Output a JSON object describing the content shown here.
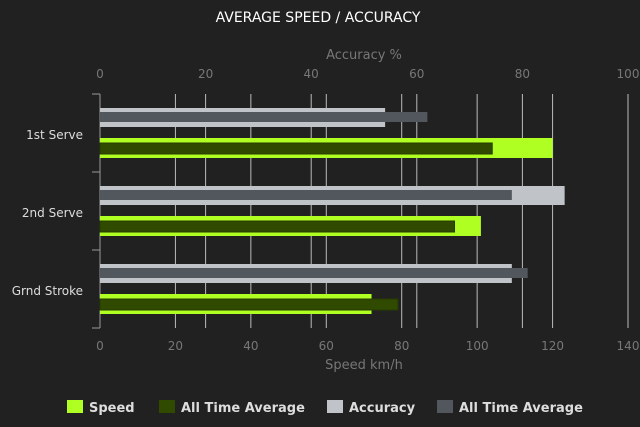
{
  "chart_data": {
    "type": "bar",
    "orientation": "horizontal",
    "title": "AVERAGE SPEED / ACCURACY",
    "categories": [
      "1st Serve",
      "2nd Serve",
      "Grnd Stroke"
    ],
    "x_bottom": {
      "label": "Speed km/h",
      "range": [
        0,
        140
      ],
      "ticks": [
        0,
        20,
        40,
        60,
        80,
        100,
        120,
        140
      ]
    },
    "x_top": {
      "label": "Accuracy %",
      "range": [
        0,
        100
      ],
      "ticks": [
        0,
        20,
        40,
        60,
        80,
        100
      ]
    },
    "grid": true,
    "legend_position": "bottom",
    "series": [
      {
        "name": "Speed",
        "axis": "bottom",
        "color": "#b0ff22",
        "values": [
          120,
          101,
          72
        ]
      },
      {
        "name": "All Time Average",
        "axis": "bottom",
        "color": "#304a00",
        "values": [
          104,
          94,
          79
        ]
      },
      {
        "name": "Accuracy",
        "axis": "top",
        "color": "#c0c4c8",
        "values": [
          54,
          88,
          78
        ]
      },
      {
        "name": "All Time Average",
        "axis": "top",
        "color": "#52575e",
        "values": [
          62,
          78,
          81
        ]
      }
    ]
  }
}
